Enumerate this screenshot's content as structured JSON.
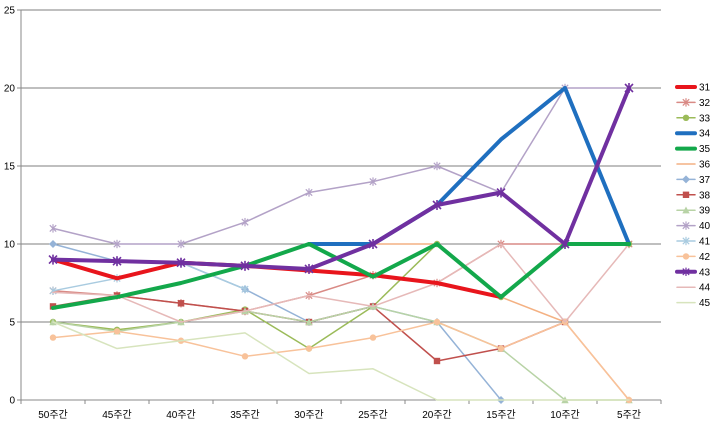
{
  "chart_data": {
    "type": "line",
    "title": "",
    "xlabel": "",
    "ylabel": "",
    "ylim": [
      0,
      25
    ],
    "y_ticks": [
      "0",
      "5",
      "10",
      "15",
      "20",
      "25"
    ],
    "grid": "horizontal",
    "legend_position": "right",
    "categories": [
      "50주간",
      "45주간",
      "40주간",
      "35주간",
      "30주간",
      "25주간",
      "20주간",
      "15주간",
      "10주간",
      "5주간"
    ],
    "series": [
      {
        "name": "31",
        "color": "#e8151c",
        "width": 4,
        "marker": "none",
        "values": [
          9,
          7.8,
          8.8,
          8.6,
          8.3,
          8,
          7.5,
          6.6,
          null,
          null
        ]
      },
      {
        "name": "32",
        "color": "#d98a85",
        "width": 1.5,
        "marker": "x",
        "values": [
          7,
          6.7,
          6.2,
          5.7,
          6.7,
          8,
          7.5,
          10,
          10,
          10
        ]
      },
      {
        "name": "33",
        "color": "#9bbb59",
        "width": 1.5,
        "marker": "circle",
        "values": [
          5,
          4.5,
          5,
          5.8,
          3.3,
          6,
          10,
          6.6,
          10,
          10
        ]
      },
      {
        "name": "34",
        "color": "#1f6fbf",
        "width": 4,
        "marker": "none",
        "values": [
          null,
          null,
          null,
          null,
          10,
          10,
          12.5,
          16.7,
          20,
          10
        ]
      },
      {
        "name": "35",
        "color": "#13a84b",
        "width": 4,
        "marker": "none",
        "values": [
          5.9,
          6.6,
          7.5,
          8.6,
          10,
          7.9,
          10,
          6.6,
          10,
          10
        ]
      },
      {
        "name": "36",
        "color": "#f4b183",
        "width": 1.5,
        "marker": "none",
        "values": [
          null,
          null,
          null,
          null,
          null,
          10,
          10,
          6.6,
          5,
          0
        ]
      },
      {
        "name": "37",
        "color": "#95b3d7",
        "width": 1.5,
        "marker": "diamond",
        "values": [
          10,
          8.9,
          8.8,
          7.1,
          5,
          6,
          5,
          0,
          null,
          null
        ]
      },
      {
        "name": "38",
        "color": "#c0504d",
        "width": 1.5,
        "marker": "square",
        "values": [
          6,
          6.7,
          6.2,
          5.7,
          5,
          6,
          2.5,
          3.3,
          5,
          null
        ]
      },
      {
        "name": "39",
        "color": "#b8d3a6",
        "width": 1.5,
        "marker": "triangle",
        "values": [
          5,
          4.4,
          5,
          5.7,
          5,
          6,
          5,
          3.3,
          0,
          0
        ]
      },
      {
        "name": "40",
        "color": "#b3a2c7",
        "width": 1.5,
        "marker": "x",
        "values": [
          11,
          10,
          10,
          11.4,
          13.3,
          14,
          15,
          13.3,
          20,
          20
        ]
      },
      {
        "name": "41",
        "color": "#a9cbe0",
        "width": 1.5,
        "marker": "x",
        "values": [
          7,
          7.8,
          8.8,
          7.1,
          null,
          null,
          null,
          null,
          null,
          null
        ]
      },
      {
        "name": "42",
        "color": "#f8c29a",
        "width": 1.5,
        "marker": "circle",
        "values": [
          4,
          4.4,
          3.8,
          2.8,
          3.3,
          4,
          5,
          3.3,
          5,
          0
        ]
      },
      {
        "name": "43",
        "color": "#7030a0",
        "width": 4,
        "marker": "x",
        "values": [
          9,
          8.9,
          8.8,
          8.6,
          8.4,
          10,
          12.5,
          13.3,
          10,
          20
        ]
      },
      {
        "name": "44",
        "color": "#e6b9b8",
        "width": 1.5,
        "marker": "none",
        "values": [
          6.9,
          6.7,
          5,
          5.7,
          6.7,
          6,
          7.5,
          10,
          5,
          10
        ]
      },
      {
        "name": "45",
        "color": "#d7e4bd",
        "width": 1.5,
        "marker": "none",
        "values": [
          5,
          3.3,
          3.8,
          4.3,
          1.7,
          2,
          0,
          0,
          0,
          0
        ]
      }
    ]
  }
}
